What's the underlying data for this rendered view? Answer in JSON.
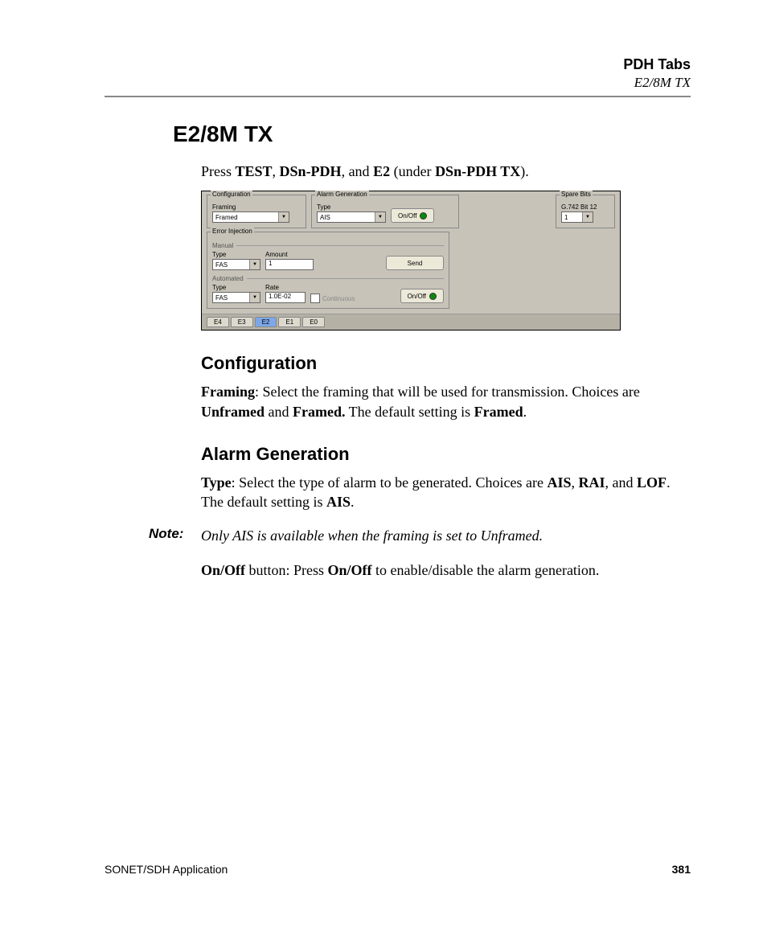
{
  "header": {
    "title": "PDH Tabs",
    "subtitle": "E2/8M TX"
  },
  "main_heading": "E2/8M TX",
  "intro": {
    "pre": "Press ",
    "b1": "TEST",
    "mid1": ", ",
    "b2": "DSn-PDH",
    "mid2": ", and ",
    "b3": "E2",
    "mid3": " (under ",
    "b4": "DSn-PDH TX",
    "post": ")."
  },
  "screenshot": {
    "config": {
      "group": "Configuration",
      "framing_label": "Framing",
      "framing_value": "Framed"
    },
    "alarm": {
      "group": "Alarm Generation",
      "type_label": "Type",
      "type_value": "AIS",
      "onoff": "On/Off"
    },
    "spare": {
      "group": "Spare Bits",
      "label": "G.742 Bit 12",
      "value": "1"
    },
    "error_injection": {
      "group": "Error Injection",
      "manual_label": "Manual",
      "type_label": "Type",
      "type_value": "FAS",
      "amount_label": "Amount",
      "amount_value": "1",
      "send": "Send",
      "automated_label": "Automated",
      "rate_label": "Rate",
      "rate_value": "1.0E-02",
      "continuous": "Continuous",
      "onoff": "On/Off",
      "auto_type_value": "FAS"
    },
    "tabs": [
      "E4",
      "E3",
      "E2",
      "E1",
      "E0"
    ],
    "active_tab_index": 2
  },
  "sections": {
    "config_h": "Configuration",
    "config_p": {
      "b1": "Framing",
      "t1": ": Select the framing that will be used for transmission. Choices are ",
      "b2": "Unframed",
      "t2": " and ",
      "b3": "Framed.",
      "t3": " The default setting is ",
      "b4": "Framed",
      "t4": "."
    },
    "alarm_h": "Alarm Generation",
    "alarm_p": {
      "b1": "Type",
      "t1": ": Select the type of alarm to be generated. Choices are ",
      "b2": "AIS",
      "t2": ", ",
      "b3": "RAI",
      "t3": ", and ",
      "b4": "LOF",
      "t4": ". The default setting is ",
      "b5": "AIS",
      "t5": "."
    },
    "note_label": "Note:",
    "note_body": "Only AIS is available when the framing is set to Unframed.",
    "onoff_p": {
      "b1": "On/Off",
      "t1": " button: Press ",
      "b2": "On/Off",
      "t2": " to enable/disable the alarm generation."
    }
  },
  "footer": {
    "left": "SONET/SDH Application",
    "page": "381"
  }
}
